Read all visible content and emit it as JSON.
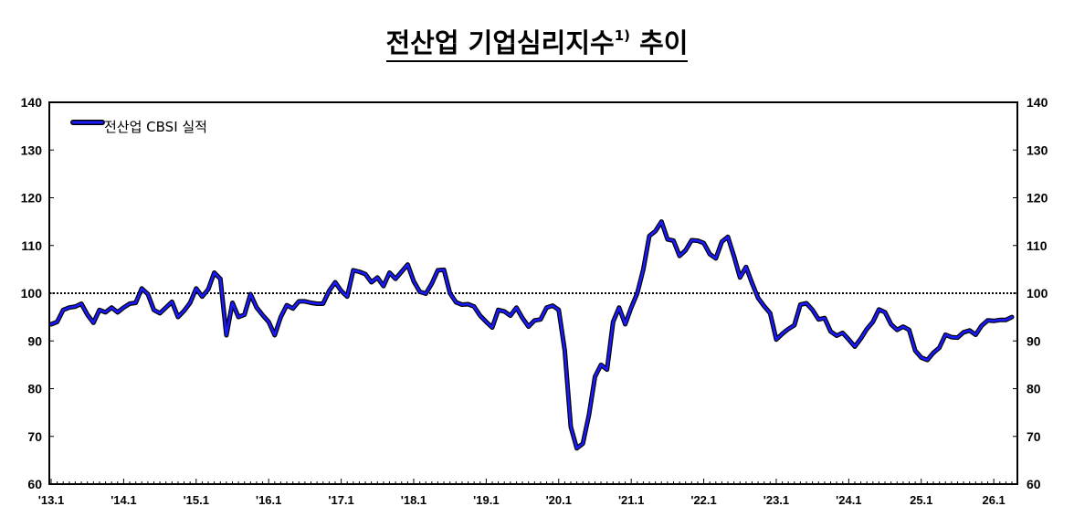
{
  "title_main": "전산업 기업심리지수",
  "title_sup": "1)",
  "title_tail": " 추이",
  "chart_data": {
    "type": "line",
    "title": "전산업 기업심리지수1) 추이",
    "ylim": [
      60,
      140
    ],
    "yticks": [
      "60",
      "70",
      "80",
      "90",
      "100",
      "110",
      "120",
      "130",
      "140"
    ],
    "xtick_labels": [
      "'13.1",
      "'14.1",
      "'15.1",
      "'16.1",
      "'17.1",
      "'18.1",
      "'19.1",
      "'20.1",
      "'21.1",
      "'22.1",
      "'23.1",
      "'24.1",
      "25.1",
      "26.1"
    ],
    "reference_line": 100,
    "legend": "top-left",
    "series": [
      {
        "name": "전산업 CBSI 실적",
        "color": "#1a1aff",
        "start": "2013.1",
        "values": [
          93.5,
          94,
          96.5,
          97,
          97.2,
          97.8,
          95.5,
          93.8,
          96.5,
          96,
          97,
          96,
          97,
          97.8,
          98,
          101,
          99.8,
          96.5,
          95.8,
          97,
          98.2,
          95,
          96.3,
          98,
          101,
          99.3,
          100.8,
          104.3,
          103,
          91.2,
          98,
          95,
          95.5,
          99.8,
          97,
          95.4,
          94,
          91.2,
          95,
          97.5,
          96.8,
          98.3,
          98.3,
          98,
          97.8,
          97.8,
          100.5,
          102.3,
          100.5,
          99.3,
          104.8,
          104.5,
          104,
          102.3,
          103.3,
          101.5,
          104.3,
          103,
          104.5,
          106,
          102.5,
          100.3,
          99.9,
          102,
          104.8,
          104.9,
          100,
          98.1,
          97.6,
          97.7,
          97.2,
          95.3,
          94,
          92.8,
          96.5,
          96.2,
          95.3,
          97,
          94.8,
          93,
          94.3,
          94.5,
          97,
          97.4,
          96.5,
          88,
          72,
          67.5,
          68.5,
          74.5,
          82.5,
          85,
          84,
          94,
          97,
          93.5,
          97,
          100,
          105,
          112,
          113,
          115,
          111.3,
          111,
          107.8,
          109,
          111.1,
          111,
          110.5,
          108.2,
          107.3,
          110.8,
          111.8,
          107.8,
          103.3,
          105.5,
          102.1,
          99,
          97.3,
          95.8,
          90.3,
          91.5,
          92.5,
          93.3,
          97.6,
          97.9,
          96.5,
          94.5,
          94.8,
          92,
          91.1,
          91.7,
          90.3,
          88.8,
          90.5,
          92.5,
          94,
          96.6,
          96,
          93.5,
          92.3,
          93,
          92.3,
          88,
          86.5,
          86,
          87.5,
          88.6,
          91.3,
          90.8,
          90.7,
          91.8,
          92.2,
          91.3,
          93.2,
          94.3,
          94.2,
          94.4,
          94.4,
          95
        ]
      }
    ]
  }
}
